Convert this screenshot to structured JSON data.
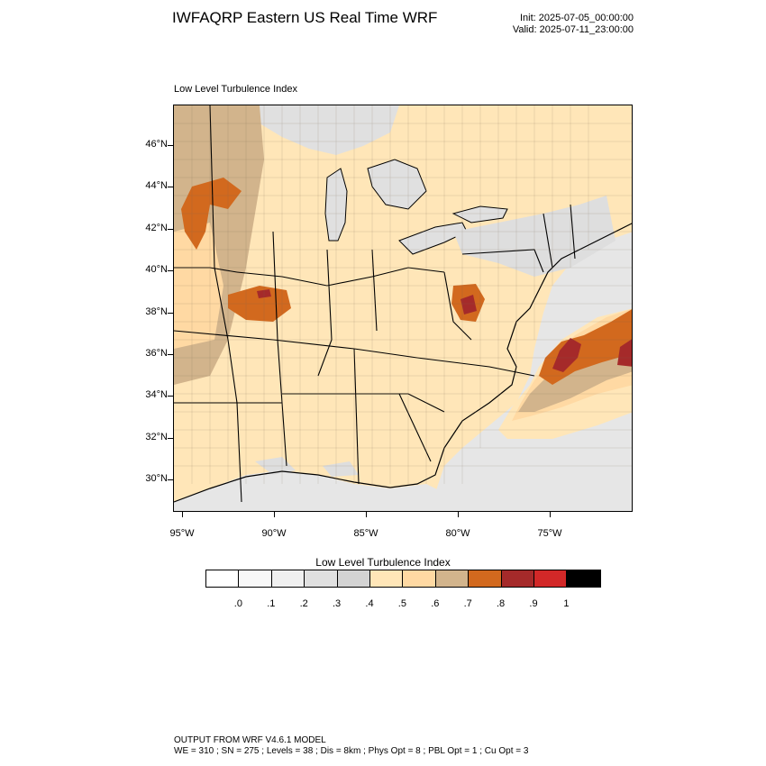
{
  "header": {
    "title": "IWFAQRP Eastern US Real Time WRF",
    "init": "Init: 2025-07-05_00:00:00",
    "valid": "Valid: 2025-07-11_23:00:00"
  },
  "map": {
    "label": "Low Level Turbulence Index",
    "lat_labels": [
      "46°N",
      "44°N",
      "42°N",
      "40°N",
      "38°N",
      "36°N",
      "34°N",
      "32°N",
      "30°N"
    ],
    "lon_labels": [
      "95°W",
      "90°W",
      "85°W",
      "80°W",
      "75°W"
    ],
    "colors": {
      "water_light": "#f0f0f0",
      "water_mid": "#dedede",
      "land_base": "#ffe6b8",
      "land_mid": "#ffd9a3",
      "land_high": "#d2b48c",
      "orange": "#d2691e",
      "red_brown": "#a52a2a"
    }
  },
  "colorbar": {
    "title": "Low Level Turbulence Index",
    "colors": [
      "#ffffff",
      "#f8f8f8",
      "#f0f0f0",
      "#e0e0e0",
      "#d3d3d3",
      "#ffe6b8",
      "#ffd9a3",
      "#d2b48c",
      "#d2691e",
      "#a52a2a",
      "#d22828",
      "#000000"
    ],
    "labels": [
      ".0",
      ".1",
      ".2",
      ".3",
      ".4",
      ".5",
      ".6",
      ".7",
      ".8",
      ".9",
      "1"
    ]
  },
  "footer": {
    "line1": "OUTPUT FROM WRF V4.6.1 MODEL",
    "line2": "WE = 310 ; SN = 275 ; Levels = 38 ; Dis = 8km ; Phys Opt = 8 ; PBL Opt = 1 ; Cu Opt = 3"
  }
}
